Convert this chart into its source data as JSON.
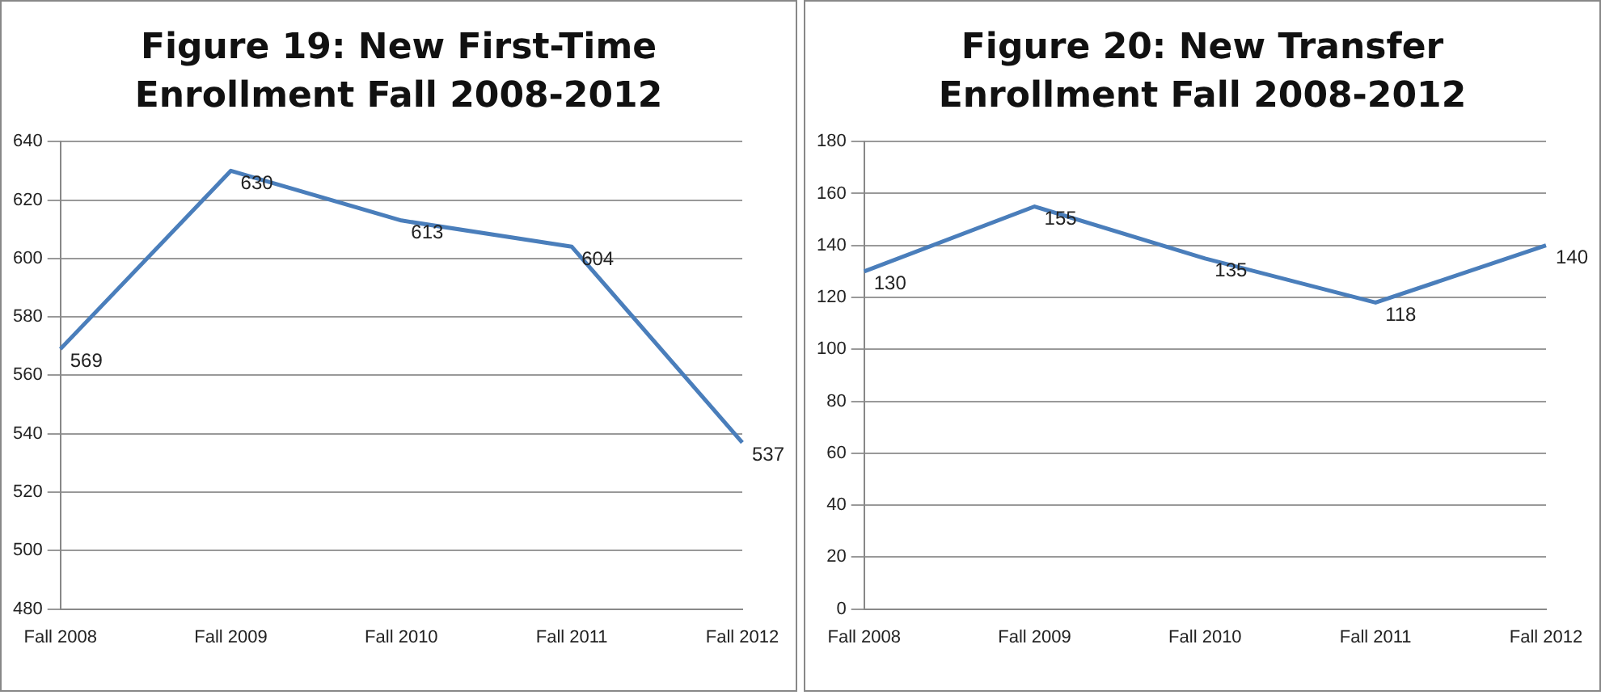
{
  "chart_data": [
    {
      "type": "line",
      "title": "Figure 19: New First-Time Enrollment Fall 2008-2012",
      "categories": [
        "Fall 2008",
        "Fall 2009",
        "Fall 2010",
        "Fall 2011",
        "Fall 2012"
      ],
      "series": [
        {
          "color": "#4a7ebb",
          "values": [
            569,
            630,
            613,
            604,
            537
          ]
        }
      ],
      "ylim": [
        480,
        640
      ],
      "yticks": [
        480,
        500,
        520,
        540,
        560,
        580,
        600,
        620,
        640
      ],
      "grid": "y",
      "legend": false,
      "marker": "none",
      "data_labels": true
    },
    {
      "type": "line",
      "title": "Figure 20: New Transfer Enrollment Fall 2008-2012",
      "categories": [
        "Fall 2008",
        "Fall 2009",
        "Fall 2010",
        "Fall 2011",
        "Fall 2012"
      ],
      "series": [
        {
          "color": "#4a7ebb",
          "values": [
            130,
            155,
            135,
            118,
            140
          ]
        }
      ],
      "ylim": [
        0,
        180
      ],
      "yticks": [
        0,
        20,
        40,
        60,
        80,
        100,
        120,
        140,
        160,
        180
      ],
      "grid": "y",
      "legend": false,
      "marker": "none",
      "data_labels": true
    }
  ]
}
